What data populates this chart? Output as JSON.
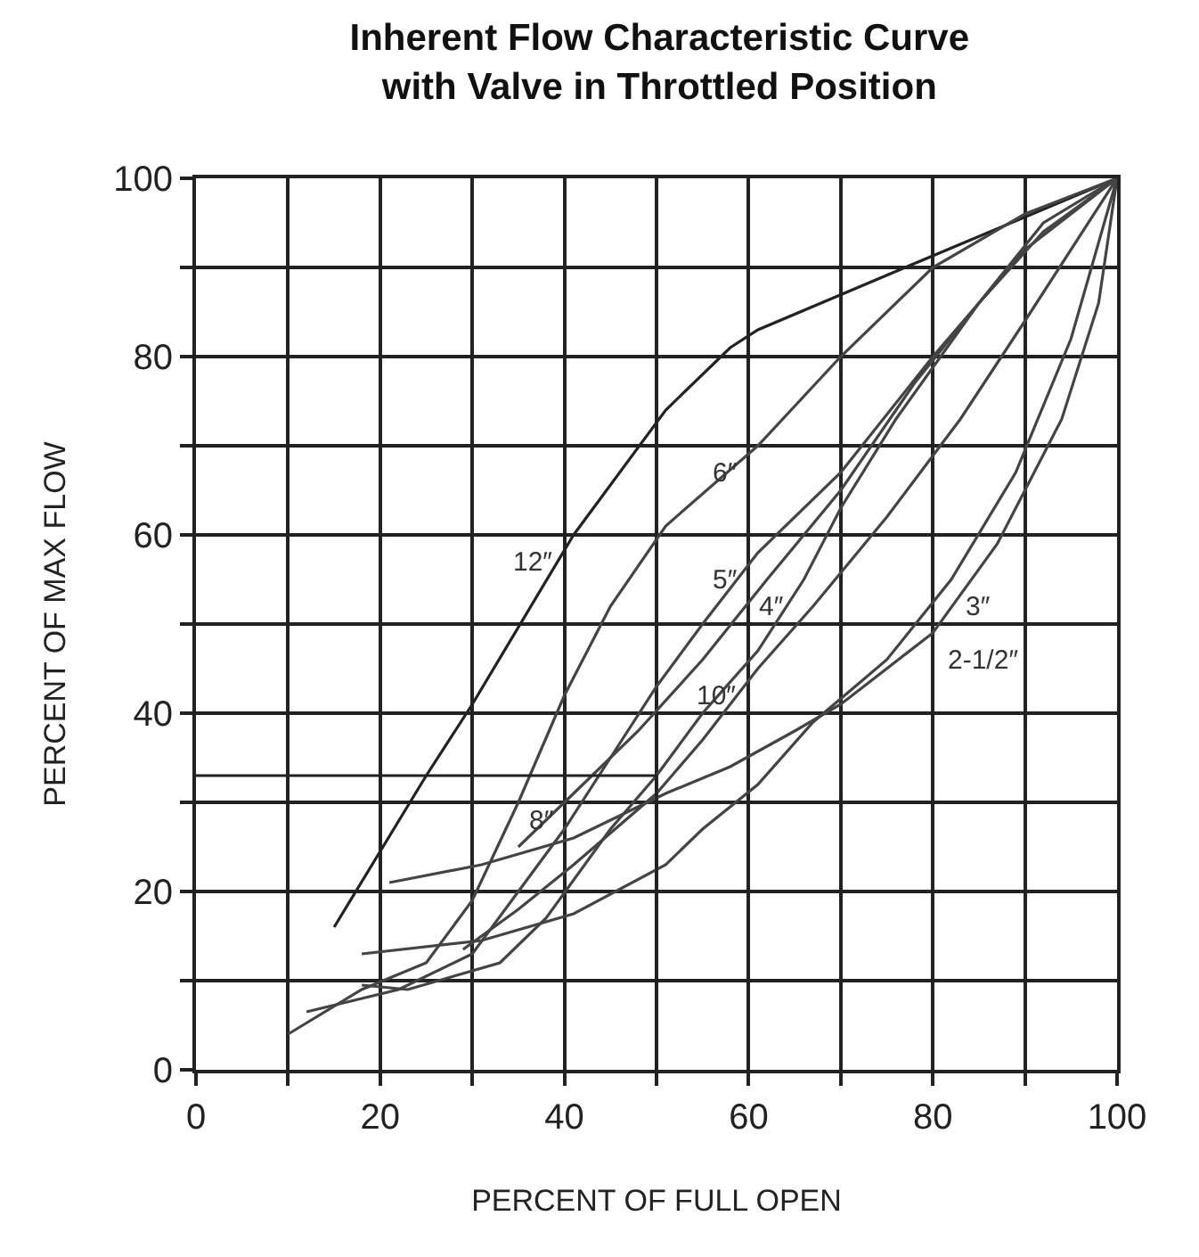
{
  "chart_data": {
    "type": "line",
    "title": "Inherent Flow Characteristic Curve\nwith Valve in Throttled Position",
    "xlabel": "PERCENT OF FULL OPEN",
    "ylabel": "PERCENT OF MAX FLOW",
    "xlim": [
      0,
      100
    ],
    "ylim": [
      0,
      100
    ],
    "xticks": [
      0,
      {
        "value": 10,
        "label": null
      },
      20,
      {
        "value": 30,
        "label": null
      },
      40,
      {
        "value": 50,
        "label": null
      },
      60,
      {
        "value": 70,
        "label": null
      },
      80,
      {
        "value": 90,
        "label": null
      },
      100
    ],
    "yticks": [
      0,
      {
        "value": 10,
        "label": null
      },
      20,
      {
        "value": 30,
        "label": null
      },
      40,
      {
        "value": 50,
        "label": null
      },
      60,
      {
        "value": 70,
        "label": null
      },
      80,
      {
        "value": 90,
        "label": null
      },
      100
    ],
    "grid": true,
    "marker": "none",
    "line_style": "solid",
    "series": [
      {
        "color": "#222222",
        "x": [
          15,
          25,
          30,
          41,
          51,
          58,
          61,
          77,
          100
        ],
        "values": [
          16,
          33,
          41,
          60,
          74,
          81,
          83,
          90,
          100
        ]
      },
      {
        "color": "#444444",
        "x": [
          10,
          18,
          25,
          30,
          35,
          40,
          45,
          51,
          61,
          70,
          80,
          90,
          100
        ],
        "values": [
          4,
          9,
          12,
          19,
          30,
          42,
          52,
          61,
          70,
          80,
          90,
          96,
          100
        ]
      },
      {
        "color": "#444444",
        "x": [
          12,
          22,
          30,
          35,
          40,
          45,
          50,
          55,
          61,
          70,
          80,
          90,
          100
        ],
        "values": [
          6.5,
          9,
          13,
          20,
          27,
          35,
          43,
          50,
          58,
          67,
          80,
          92,
          100
        ]
      },
      {
        "color": "#444444",
        "x": [
          18,
          23,
          33,
          38,
          45,
          50,
          55,
          61,
          66,
          70,
          76,
          85,
          92,
          100
        ],
        "values": [
          9.5,
          9,
          12,
          17,
          27,
          33,
          40,
          47,
          55,
          63,
          73,
          86,
          95,
          100
        ]
      },
      {
        "color": "#444444",
        "x": [
          18,
          31,
          41,
          51,
          55,
          61,
          67,
          75,
          82,
          89,
          95,
          100
        ],
        "values": [
          13,
          14.5,
          17.5,
          23,
          27,
          32,
          39,
          46,
          55,
          67,
          82,
          100
        ]
      },
      {
        "color": "#444444",
        "x": [
          21,
          31,
          41,
          51,
          58,
          65,
          70,
          80,
          87,
          94,
          98,
          100
        ],
        "values": [
          21,
          23,
          26,
          31,
          34,
          38,
          41,
          49,
          59,
          73,
          86,
          100
        ]
      },
      {
        "color": "#444444",
        "x": [
          29,
          35,
          41,
          50,
          55,
          61,
          67,
          75,
          83,
          90,
          100
        ],
        "values": [
          13.5,
          18,
          23,
          31,
          37,
          45,
          52,
          62,
          73,
          84,
          100
        ]
      },
      {
        "color": "#444444",
        "x": [
          35,
          41,
          48,
          55,
          62,
          70,
          78,
          85,
          92,
          100
        ],
        "values": [
          25,
          31,
          38,
          46,
          55,
          65,
          77,
          86,
          94,
          100
        ]
      },
      {
        "color": "#222222",
        "x": [
          0,
          50,
          50
        ],
        "values": [
          33,
          33,
          0
        ]
      }
    ],
    "annotations": [
      {
        "text": "12″",
        "x": 41,
        "y": 60
      },
      {
        "text": "6″",
        "x": 61,
        "y": 70
      },
      {
        "text": "5″",
        "x": 61,
        "y": 58
      },
      {
        "text": "4″",
        "x": 66,
        "y": 55
      },
      {
        "text": "3″",
        "x": 82,
        "y": 55
      },
      {
        "text": "2-1/2″",
        "x": 80,
        "y": 49
      },
      {
        "text": "10″",
        "x": 61,
        "y": 45
      },
      {
        "text": "8″",
        "x": 41,
        "y": 31
      }
    ]
  }
}
